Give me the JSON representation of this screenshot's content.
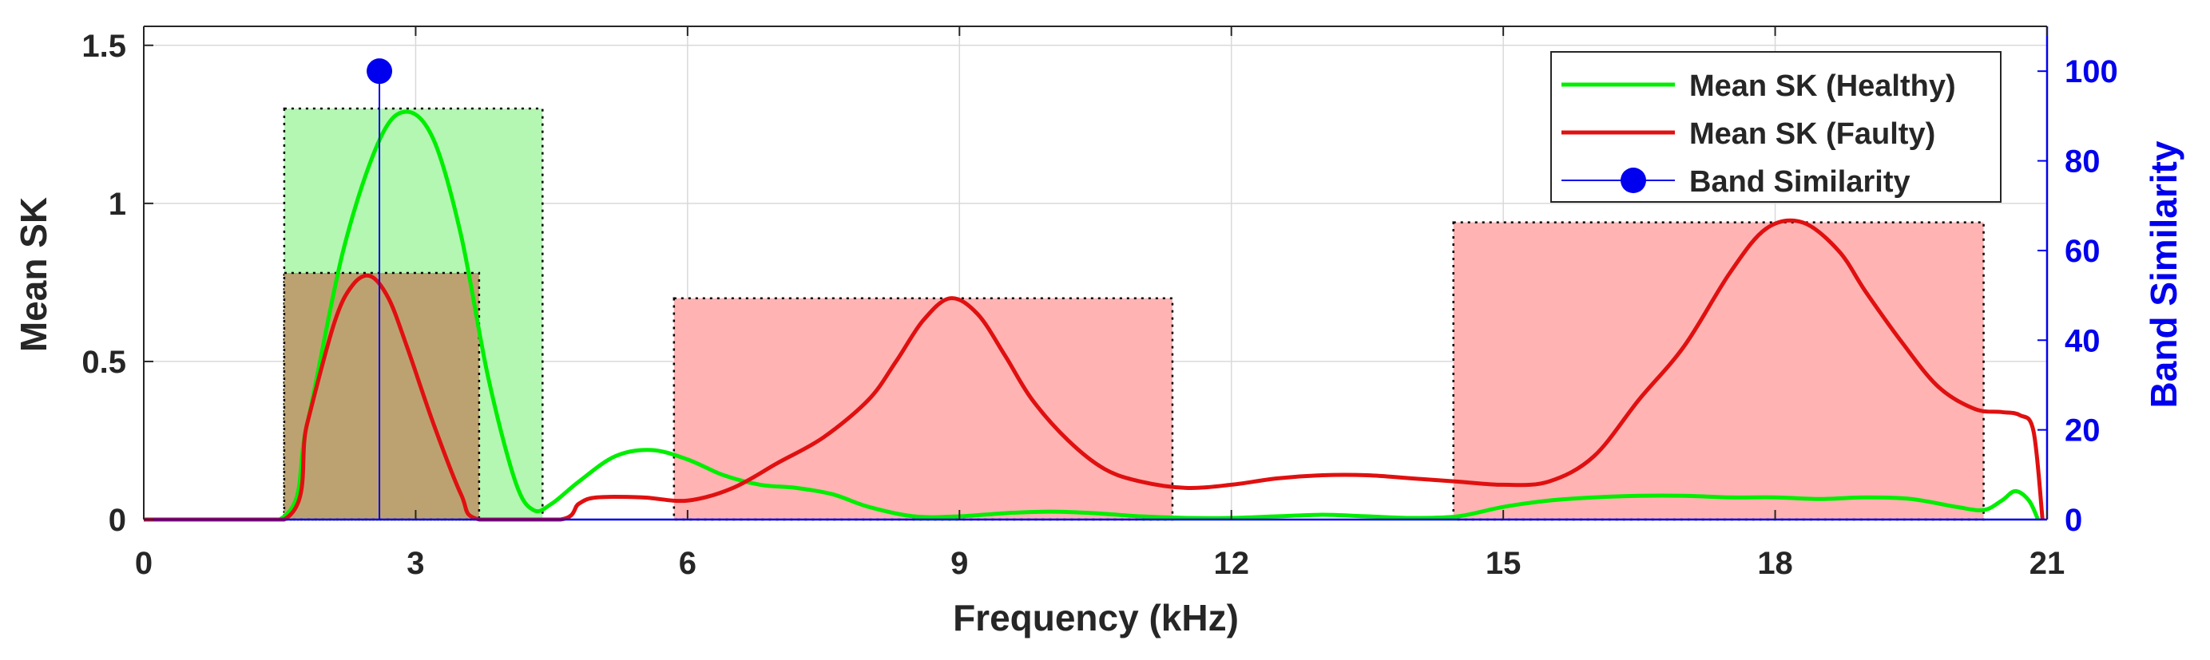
{
  "chart_data": {
    "type": "line",
    "xlabel": "Frequency (kHz)",
    "ylabel": "Mean SK",
    "y2label": "Band Similarity",
    "xlim": [
      0,
      21
    ],
    "ylim": [
      0,
      1.56
    ],
    "y2lim": [
      0,
      110
    ],
    "xticks": [
      0,
      3,
      6,
      9,
      12,
      15,
      18,
      21
    ],
    "yticks": [
      0,
      0.5,
      1,
      1.5
    ],
    "y2ticks": [
      0,
      20,
      40,
      60,
      80,
      100
    ],
    "grid": true,
    "legend_position": "top-right",
    "legend": [
      "Mean SK (Healthy)",
      "Mean SK (Faulty)",
      "Band Similarity"
    ],
    "colors": {
      "healthy": "#00ee00",
      "faulty": "#e01010",
      "similarity": "#0000ee",
      "healthy_band": "#b3f7b3",
      "faulty_band": "#ffb3b3",
      "overlap_band": "#bda271"
    },
    "series": [
      {
        "name": "Mean SK (Healthy)",
        "x": [
          0,
          1.5,
          1.8,
          2.2,
          2.6,
          2.9,
          3.2,
          3.5,
          3.8,
          4.1,
          4.3,
          4.5,
          4.8,
          5.2,
          5.6,
          6.0,
          6.4,
          6.8,
          7.2,
          7.6,
          8.0,
          8.5,
          9.0,
          9.5,
          10.0,
          10.5,
          11.0,
          11.5,
          12.0,
          12.5,
          13.0,
          13.5,
          14.0,
          14.5,
          15.0,
          15.5,
          16.0,
          16.5,
          17.0,
          17.5,
          18.0,
          18.5,
          19.0,
          19.5,
          20.0,
          20.3,
          20.5,
          20.65,
          20.8,
          20.9
        ],
        "y": [
          0,
          0,
          0.3,
          0.85,
          1.2,
          1.29,
          1.2,
          0.9,
          0.45,
          0.12,
          0.03,
          0.05,
          0.12,
          0.2,
          0.22,
          0.19,
          0.14,
          0.11,
          0.1,
          0.08,
          0.04,
          0.01,
          0.01,
          0.02,
          0.025,
          0.02,
          0.01,
          0.005,
          0.005,
          0.01,
          0.015,
          0.01,
          0.005,
          0.01,
          0.04,
          0.06,
          0.07,
          0.075,
          0.075,
          0.07,
          0.07,
          0.065,
          0.07,
          0.065,
          0.04,
          0.03,
          0.06,
          0.09,
          0.06,
          0
        ]
      },
      {
        "name": "Mean SK (Faulty)",
        "x": [
          0,
          1.55,
          1.8,
          2.1,
          2.3,
          2.5,
          2.7,
          2.9,
          3.2,
          3.5,
          3.7,
          4.6,
          4.8,
          5.0,
          5.5,
          6.0,
          6.5,
          7.0,
          7.5,
          8.0,
          8.3,
          8.6,
          8.9,
          9.2,
          9.5,
          9.8,
          10.2,
          10.6,
          11.0,
          11.5,
          12.0,
          12.5,
          13.0,
          13.5,
          14.0,
          14.5,
          15.0,
          15.5,
          16.0,
          16.5,
          17.0,
          17.5,
          17.9,
          18.3,
          18.7,
          19.0,
          19.4,
          19.8,
          20.2,
          20.5,
          20.7,
          20.85,
          20.95
        ],
        "y": [
          0,
          0,
          0.3,
          0.62,
          0.74,
          0.77,
          0.7,
          0.55,
          0.3,
          0.08,
          0,
          0,
          0.05,
          0.07,
          0.07,
          0.06,
          0.1,
          0.18,
          0.26,
          0.38,
          0.5,
          0.63,
          0.7,
          0.65,
          0.52,
          0.38,
          0.25,
          0.16,
          0.12,
          0.1,
          0.11,
          0.13,
          0.14,
          0.14,
          0.13,
          0.12,
          0.11,
          0.12,
          0.2,
          0.38,
          0.55,
          0.78,
          0.92,
          0.94,
          0.85,
          0.72,
          0.56,
          0.42,
          0.35,
          0.34,
          0.33,
          0.28,
          0
        ]
      }
    ],
    "bands": [
      {
        "type": "healthy",
        "x0": 1.55,
        "x1": 4.4,
        "height": 1.3
      },
      {
        "type": "overlap",
        "x0": 1.55,
        "x1": 3.7,
        "height": 0.78
      },
      {
        "type": "faulty",
        "x0": 5.85,
        "x1": 11.35,
        "height": 0.7
      },
      {
        "type": "faulty",
        "x0": 14.45,
        "x1": 20.3,
        "height": 0.94
      }
    ],
    "band_similarity": [
      {
        "x": 2.6,
        "value": 100
      }
    ]
  }
}
